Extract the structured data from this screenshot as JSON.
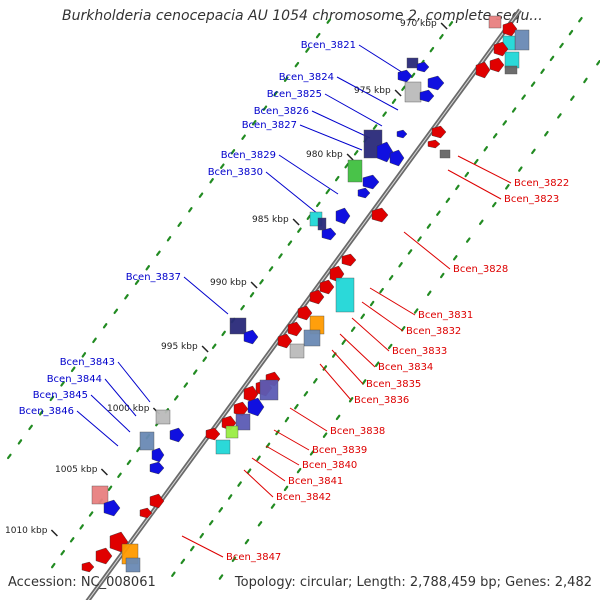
{
  "title": "Burkholderia cenocepacia AU 1054 chromosome 2, complete sequ...",
  "footer": {
    "accession": "Accession: NC_008061",
    "topology": "Topology: circular; Length: 2,788,459 bp; Genes: 2,482"
  },
  "colors": {
    "backbone": "#808080",
    "tick_dot": "#228b22",
    "left_label": "#0000cc",
    "right_label": "#dd0000",
    "blue": "#1010e0",
    "red": "#e00000",
    "navy": "#2a2a7a",
    "purple": "#5b5bb5",
    "grey": "#bbbbbb",
    "dark_grey": "#666666",
    "cyan": "#20d8d8",
    "green": "#40c040",
    "lime": "#99ee44",
    "orange": "#ff9a00",
    "pink": "#e88080",
    "steel": "#6a8ab5"
  },
  "scale_labels": [
    "970 kbp",
    "975 kbp",
    "980 kbp",
    "985 kbp",
    "990 kbp",
    "995 kbp",
    "1000 kbp",
    "1005 kbp",
    "1010 kbp"
  ],
  "left_genes": [
    "Bcen_3821",
    "Bcen_3824",
    "Bcen_3825",
    "Bcen_3826",
    "Bcen_3827",
    "Bcen_3829",
    "Bcen_3830",
    "Bcen_3837",
    "Bcen_3843",
    "Bcen_3844",
    "Bcen_3845",
    "Bcen_3846"
  ],
  "right_genes": [
    "Bcen_3822",
    "Bcen_3823",
    "Bcen_3828",
    "Bcen_3831",
    "Bcen_3832",
    "Bcen_3833",
    "Bcen_3834",
    "Bcen_3835",
    "Bcen_3836",
    "Bcen_3838",
    "Bcen_3839",
    "Bcen_3840",
    "Bcen_3841",
    "Bcen_3842",
    "Bcen_3847"
  ]
}
